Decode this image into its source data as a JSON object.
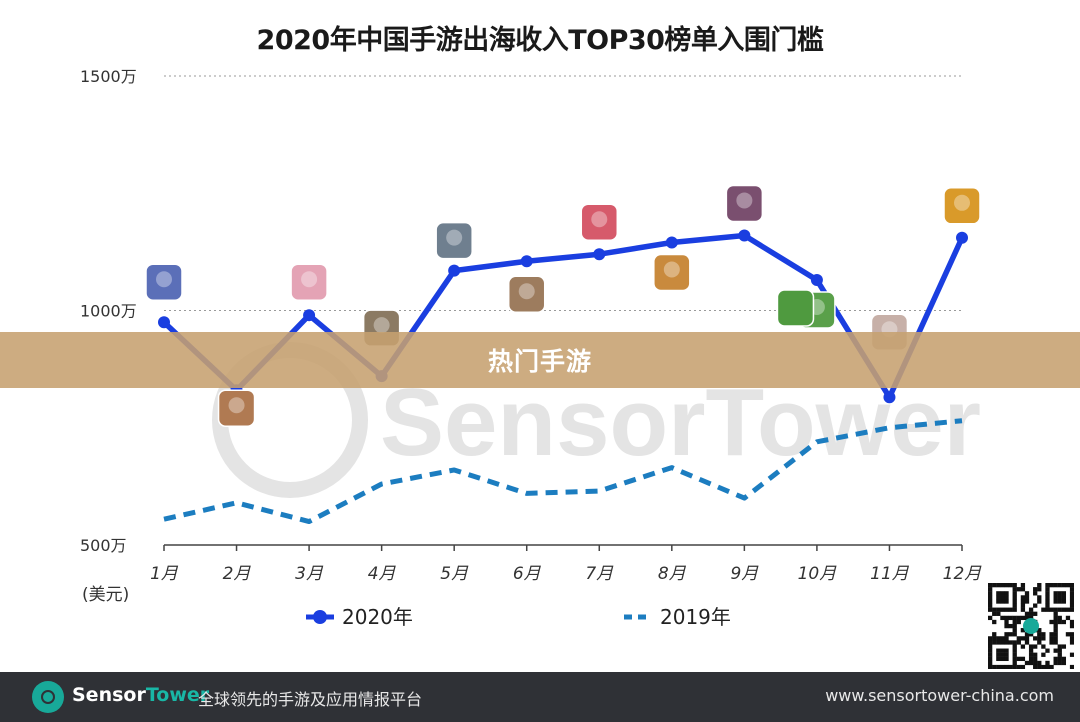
{
  "chart_data": {
    "type": "line",
    "title": "2020年中国手游出海收入TOP30榜单入围门槛",
    "categories": [
      "1月",
      "2月",
      "3月",
      "4月",
      "5月",
      "6月",
      "7月",
      "8月",
      "9月",
      "10月",
      "11月",
      "12月"
    ],
    "y_ticks": [
      "500万",
      "1000万",
      "1500万"
    ],
    "ylim": [
      500,
      1500
    ],
    "ylabel": "(美元)",
    "series": [
      {
        "name": "2020年",
        "color": "#1a3ee0",
        "style": "solid",
        "values": [
          975,
          830,
          990,
          860,
          1085,
          1105,
          1120,
          1145,
          1160,
          1065,
          815,
          1155
        ]
      },
      {
        "name": "2019年",
        "color": "#1c7dc0",
        "style": "dashed",
        "values": [
          555,
          590,
          550,
          630,
          660,
          610,
          615,
          665,
          600,
          720,
          750,
          765
        ]
      }
    ],
    "grid": true,
    "legend": "bottom"
  },
  "banner": {
    "text": "热门手游"
  },
  "watermark": {
    "text": "SensorTower"
  },
  "footer": {
    "brand_part1": "Sensor",
    "brand_part2": "Tower",
    "tagline": "全球领先的手游及应用情报平台",
    "url": "www.sensortower-china.com"
  },
  "icons": [
    "game-icon",
    "game-icon",
    "game-icon",
    "game-icon",
    "game-icon",
    "game-icon",
    "game-icon",
    "game-icon",
    "game-icon",
    "game-icon",
    "game-icon",
    "game-icon",
    "game-icon"
  ],
  "colors": {
    "banner": "#c6a070",
    "footer": "#2f3136",
    "accent": "#18a999"
  }
}
